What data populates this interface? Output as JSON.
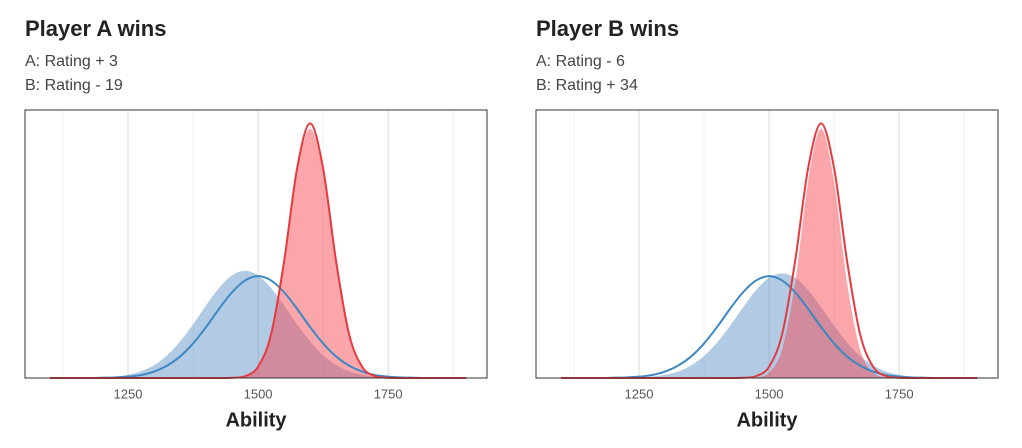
{
  "chart_data": [
    {
      "type": "density",
      "title": "Player A wins",
      "subtitle": [
        "A: Rating + 3",
        "B: Rating - 19"
      ],
      "x_label": "Ability",
      "xlim": [
        1052,
        1940
      ],
      "ylim": [
        0,
        100
      ],
      "xticks": [
        1250,
        1500,
        1750
      ],
      "xminor": [
        1125,
        1375,
        1625,
        1875
      ],
      "grid": true,
      "x": [
        1100,
        1125,
        1150,
        1175,
        1200,
        1225,
        1250,
        1275,
        1300,
        1325,
        1350,
        1375,
        1400,
        1425,
        1450,
        1475,
        1500,
        1525,
        1550,
        1575,
        1600,
        1625,
        1650,
        1675,
        1700,
        1725,
        1750,
        1775,
        1800,
        1825,
        1850,
        1875,
        1900
      ],
      "series": [
        {
          "style": "area",
          "color": "#5b93c7",
          "values": [
            0,
            0,
            0,
            0.1,
            0.2,
            0.5,
            1.2,
            2.5,
            4.8,
            8.4,
            13.6,
            20.0,
            27.1,
            33.6,
            38.3,
            40,
            38.3,
            33.6,
            27.1,
            20.0,
            13.6,
            8.4,
            4.8,
            2.5,
            1.2,
            0.5,
            0.2,
            0.1,
            0,
            0,
            0,
            0,
            0
          ]
        },
        {
          "style": "area",
          "color": "#f4444f",
          "values": [
            0,
            0,
            0,
            0,
            0,
            0,
            0,
            0,
            0,
            0,
            0,
            0,
            0,
            0,
            0.1,
            0.7,
            4.1,
            16.0,
            42.6,
            76.5,
            93,
            76.5,
            42.6,
            16.0,
            4.1,
            0.7,
            0.1,
            0,
            0,
            0,
            0,
            0,
            0
          ]
        },
        {
          "style": "line",
          "color": "#3d87c2",
          "values": [
            0,
            0,
            0,
            0,
            0.1,
            0.2,
            0.5,
            1.1,
            2.4,
            4.6,
            8.0,
            12.9,
            19.0,
            25.8,
            32.0,
            36.4,
            38,
            36.4,
            32.0,
            25.8,
            19.0,
            12.9,
            8.0,
            4.6,
            2.4,
            1.1,
            0.5,
            0.2,
            0.1,
            0,
            0,
            0,
            0
          ]
        },
        {
          "style": "line",
          "color": "#e8393f",
          "values": [
            0,
            0,
            0,
            0,
            0,
            0,
            0,
            0,
            0,
            0,
            0,
            0,
            0,
            0,
            0.1,
            0.7,
            4.2,
            16.3,
            43.5,
            78.2,
            95,
            78.2,
            43.5,
            16.3,
            4.2,
            0.7,
            0.1,
            0,
            0,
            0,
            0,
            0,
            0
          ]
        }
      ]
    },
    {
      "type": "density",
      "title": "Player B wins",
      "subtitle": [
        "A: Rating - 6",
        "B: Rating + 34"
      ],
      "x_label": "Ability",
      "xlim": [
        1052,
        1940
      ],
      "ylim": [
        0,
        100
      ],
      "xticks": [
        1250,
        1500,
        1750
      ],
      "xminor": [
        1125,
        1375,
        1625,
        1875
      ],
      "grid": true,
      "x": [
        1100,
        1125,
        1150,
        1175,
        1200,
        1225,
        1250,
        1275,
        1300,
        1325,
        1350,
        1375,
        1400,
        1425,
        1450,
        1475,
        1500,
        1525,
        1550,
        1575,
        1600,
        1625,
        1650,
        1675,
        1700,
        1725,
        1750,
        1775,
        1800,
        1825,
        1850,
        1875,
        1900
      ],
      "series": [
        {
          "style": "area",
          "color": "#5b93c7",
          "values": [
            0,
            0,
            0,
            0,
            0,
            0.1,
            0.2,
            0.5,
            1.2,
            2.4,
            4.7,
            8.2,
            13.2,
            19.5,
            26.4,
            32.8,
            37.4,
            39,
            37.4,
            32.8,
            26.4,
            19.5,
            13.2,
            8.2,
            4.7,
            2.4,
            1.2,
            0.5,
            0.2,
            0.1,
            0,
            0,
            0
          ]
        },
        {
          "style": "area",
          "color": "#f4444f",
          "values": [
            0,
            0,
            0,
            0,
            0,
            0,
            0,
            0,
            0,
            0,
            0,
            0,
            0,
            0,
            0,
            0.2,
            2.0,
            10.6,
            35.4,
            73.1,
            93,
            73.1,
            35.4,
            10.6,
            2.0,
            0.2,
            0,
            0,
            0,
            0,
            0,
            0,
            0
          ]
        },
        {
          "style": "line",
          "color": "#3d87c2",
          "values": [
            0,
            0,
            0,
            0,
            0.1,
            0.2,
            0.5,
            1.1,
            2.4,
            4.6,
            8.0,
            12.9,
            19.0,
            25.8,
            32.0,
            36.4,
            38,
            36.4,
            32.0,
            25.8,
            19.0,
            12.9,
            8.0,
            4.6,
            2.4,
            1.1,
            0.5,
            0.2,
            0.1,
            0,
            0,
            0,
            0
          ]
        },
        {
          "style": "line",
          "color": "#e8393f",
          "values": [
            0,
            0,
            0,
            0,
            0,
            0,
            0,
            0,
            0,
            0,
            0,
            0,
            0,
            0,
            0.1,
            0.7,
            4.2,
            16.3,
            43.5,
            78.2,
            95,
            78.2,
            43.5,
            16.3,
            4.2,
            0.7,
            0.1,
            0,
            0,
            0,
            0,
            0,
            0
          ]
        }
      ]
    }
  ]
}
